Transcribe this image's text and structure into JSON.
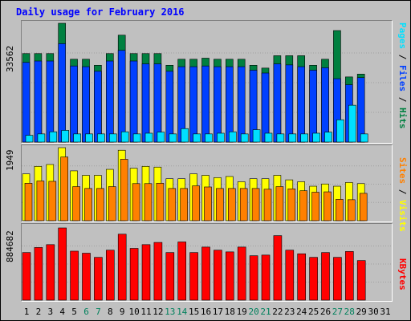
{
  "chart_data": {
    "title": "Daily usage for February 2016",
    "type": "bar",
    "x": [
      "1",
      "2",
      "3",
      "4",
      "5",
      "6",
      "7",
      "8",
      "9",
      "10",
      "11",
      "12",
      "13",
      "14",
      "15",
      "16",
      "17",
      "18",
      "19",
      "20",
      "21",
      "22",
      "23",
      "24",
      "25",
      "26",
      "27",
      "28",
      "29",
      "30",
      "31"
    ],
    "weekend_days": [
      "6",
      "7",
      "13",
      "14",
      "20",
      "21",
      "27",
      "28"
    ],
    "panels": [
      {
        "max_label": "33562",
        "ymax": 33562,
        "series": [
          {
            "name": "Hits",
            "color": "#008040",
            "values": [
              25000,
              25000,
              25000,
              33562,
              23400,
              23400,
              21700,
              25000,
              30200,
              25000,
              25000,
              25000,
              21700,
              23400,
              23400,
              23700,
              23400,
              23400,
              23400,
              21700,
              20900,
              24400,
              24400,
              24400,
              21700,
              23400,
              31500,
              18400,
              19200,
              null,
              null
            ]
          },
          {
            "name": "Files",
            "color": "#0040ff",
            "values": [
              22500,
              22900,
              22900,
              27800,
              21500,
              21300,
              20000,
              22900,
              25900,
              22900,
              22100,
              22100,
              20000,
              21300,
              21300,
              21500,
              21300,
              21300,
              21300,
              20300,
              19500,
              22100,
              21800,
              21300,
              20300,
              21000,
              17900,
              16200,
              18200,
              null,
              null
            ]
          },
          {
            "name": "Pages",
            "color": "#00e0ff",
            "values": [
              1900,
              2300,
              2900,
              3300,
              2300,
              2300,
              2300,
              2300,
              2900,
              2300,
              2500,
              2800,
              2300,
              3800,
              2300,
              2300,
              2500,
              2900,
              2300,
              3500,
              2500,
              2300,
              2300,
              2300,
              2500,
              2800,
              6300,
              10400,
              2300,
              null,
              null
            ]
          }
        ]
      },
      {
        "max_label": "1949",
        "ymax": 1949,
        "series": [
          {
            "name": "Visits",
            "color": "#ffff00",
            "values": [
              1250,
              1450,
              1500,
              1949,
              1330,
              1210,
              1210,
              1370,
              1880,
              1400,
              1450,
              1430,
              1120,
              1120,
              1250,
              1210,
              1150,
              1180,
              1040,
              1120,
              1120,
              1210,
              1090,
              1040,
              920,
              980,
              920,
              1020,
              990,
              null,
              null
            ]
          },
          {
            "name": "Sites",
            "color": "#ff8000",
            "values": [
              1000,
              1060,
              1050,
              1700,
              910,
              860,
              860,
              910,
              1640,
              990,
              990,
              1000,
              860,
              860,
              930,
              900,
              860,
              860,
              860,
              860,
              840,
              910,
              850,
              800,
              760,
              770,
              570,
              560,
              730,
              null,
              null
            ]
          }
        ]
      },
      {
        "max_label": "884682",
        "ymax": 884682,
        "series": [
          {
            "name": "KBytes",
            "color": "#ff0000",
            "values": [
              583000,
              645000,
              680000,
              884682,
              600000,
              575000,
              524000,
              612000,
              808000,
              634000,
              680000,
              707000,
              583000,
              713000,
              583000,
              650000,
              612000,
              591000,
              650000,
              544000,
              552000,
              790000,
              612000,
              568000,
              524000,
              583000,
              524000,
              596000,
              485000,
              null,
              null
            ]
          }
        ]
      }
    ],
    "colors": {
      "title": "#0000ff",
      "weekday_label": "#000000",
      "weekend_label": "#00805c",
      "background": "#c0c0c0",
      "gridline": "#a0a0a0",
      "separator": "#808080"
    }
  }
}
